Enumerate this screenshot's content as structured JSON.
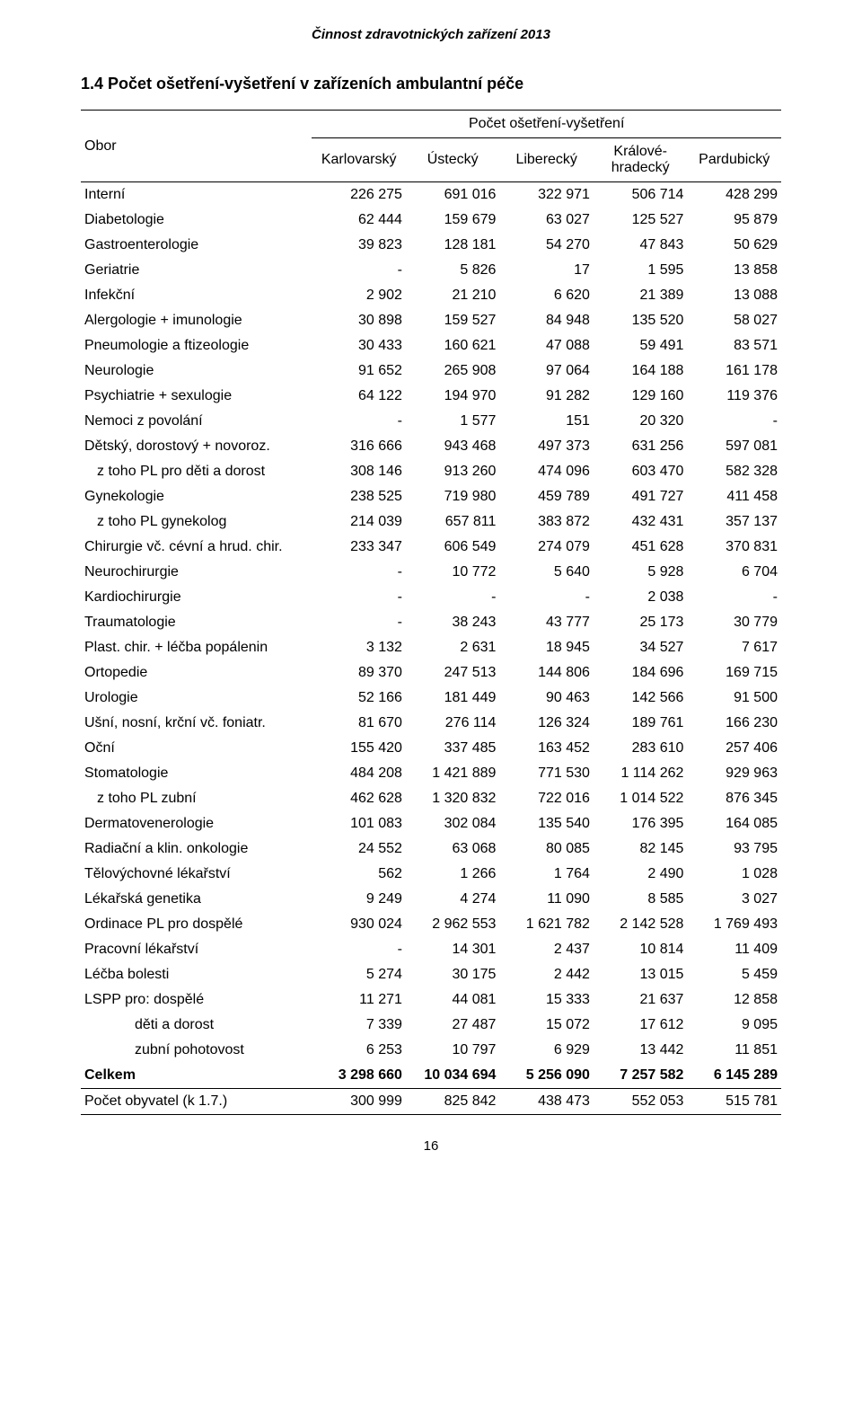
{
  "doc_header": "Činnost zdravotnických zařízení 2013",
  "title": "1.4 Počet ošetření-vyšetření v zařízeních ambulantní péče",
  "header": {
    "obor": "Obor",
    "super": "Počet ošetření-vyšetření",
    "cols": [
      "Karlovarský",
      "Ústecký",
      "Liberecký",
      "Králové-\nhradecký",
      "Pardubický"
    ]
  },
  "rows": [
    {
      "label": "Interní",
      "indent": 0,
      "v": [
        "226 275",
        "691 016",
        "322 971",
        "506 714",
        "428 299"
      ]
    },
    {
      "label": "Diabetologie",
      "indent": 0,
      "v": [
        "62 444",
        "159 679",
        "63 027",
        "125 527",
        "95 879"
      ]
    },
    {
      "label": "Gastroenterologie",
      "indent": 0,
      "v": [
        "39 823",
        "128 181",
        "54 270",
        "47 843",
        "50 629"
      ]
    },
    {
      "label": "Geriatrie",
      "indent": 0,
      "v": [
        "-",
        "5 826",
        "17",
        "1 595",
        "13 858"
      ]
    },
    {
      "label": "Infekční",
      "indent": 0,
      "v": [
        "2 902",
        "21 210",
        "6 620",
        "21 389",
        "13 088"
      ]
    },
    {
      "label": "Alergologie + imunologie",
      "indent": 0,
      "v": [
        "30 898",
        "159 527",
        "84 948",
        "135 520",
        "58 027"
      ]
    },
    {
      "label": "Pneumologie a ftizeologie",
      "indent": 0,
      "v": [
        "30 433",
        "160 621",
        "47 088",
        "59 491",
        "83 571"
      ]
    },
    {
      "label": "Neurologie",
      "indent": 0,
      "v": [
        "91 652",
        "265 908",
        "97 064",
        "164 188",
        "161 178"
      ]
    },
    {
      "label": "Psychiatrie + sexulogie",
      "indent": 0,
      "v": [
        "64 122",
        "194 970",
        "91 282",
        "129 160",
        "119 376"
      ]
    },
    {
      "label": "Nemoci z povolání",
      "indent": 0,
      "v": [
        "-",
        "1 577",
        "151",
        "20 320",
        "-"
      ]
    },
    {
      "label": "Dětský, dorostový + novoroz.",
      "indent": 0,
      "v": [
        "316 666",
        "943 468",
        "497 373",
        "631 256",
        "597 081"
      ]
    },
    {
      "label": "z toho PL pro děti a dorost",
      "indent": 1,
      "v": [
        "308 146",
        "913 260",
        "474 096",
        "603 470",
        "582 328"
      ]
    },
    {
      "label": "Gynekologie",
      "indent": 0,
      "v": [
        "238 525",
        "719 980",
        "459 789",
        "491 727",
        "411 458"
      ]
    },
    {
      "label": "z toho PL gynekolog",
      "indent": 1,
      "v": [
        "214 039",
        "657 811",
        "383 872",
        "432 431",
        "357 137"
      ]
    },
    {
      "label": "Chirurgie vč. cévní a hrud. chir.",
      "indent": 0,
      "v": [
        "233 347",
        "606 549",
        "274 079",
        "451 628",
        "370 831"
      ]
    },
    {
      "label": "Neurochirurgie",
      "indent": 0,
      "v": [
        "-",
        "10 772",
        "5 640",
        "5 928",
        "6 704"
      ]
    },
    {
      "label": "Kardiochirurgie",
      "indent": 0,
      "v": [
        "-",
        "-",
        "-",
        "2 038",
        "-"
      ]
    },
    {
      "label": "Traumatologie",
      "indent": 0,
      "v": [
        "-",
        "38 243",
        "43 777",
        "25 173",
        "30 779"
      ]
    },
    {
      "label": "Plast. chir. + léčba popálenin",
      "indent": 0,
      "v": [
        "3 132",
        "2 631",
        "18 945",
        "34 527",
        "7 617"
      ]
    },
    {
      "label": "Ortopedie",
      "indent": 0,
      "v": [
        "89 370",
        "247 513",
        "144 806",
        "184 696",
        "169 715"
      ]
    },
    {
      "label": "Urologie",
      "indent": 0,
      "v": [
        "52 166",
        "181 449",
        "90 463",
        "142 566",
        "91 500"
      ]
    },
    {
      "label": "Ušní, nosní, krční vč. foniatr.",
      "indent": 0,
      "v": [
        "81 670",
        "276 114",
        "126 324",
        "189 761",
        "166 230"
      ]
    },
    {
      "label": "Oční",
      "indent": 0,
      "v": [
        "155 420",
        "337 485",
        "163 452",
        "283 610",
        "257 406"
      ]
    },
    {
      "label": "Stomatologie",
      "indent": 0,
      "v": [
        "484 208",
        "1 421 889",
        "771 530",
        "1 114 262",
        "929 963"
      ]
    },
    {
      "label": "z toho PL zubní",
      "indent": 1,
      "v": [
        "462 628",
        "1 320 832",
        "722 016",
        "1 014 522",
        "876 345"
      ]
    },
    {
      "label": "Dermatovenerologie",
      "indent": 0,
      "v": [
        "101 083",
        "302 084",
        "135 540",
        "176 395",
        "164 085"
      ]
    },
    {
      "label": "Radiační a klin. onkologie",
      "indent": 0,
      "v": [
        "24 552",
        "63 068",
        "80 085",
        "82 145",
        "93 795"
      ]
    },
    {
      "label": "Tělovýchovné lékařství",
      "indent": 0,
      "v": [
        "562",
        "1 266",
        "1 764",
        "2 490",
        "1 028"
      ]
    },
    {
      "label": "Lékařská genetika",
      "indent": 0,
      "v": [
        "9 249",
        "4 274",
        "11 090",
        "8 585",
        "3 027"
      ]
    },
    {
      "label": "Ordinace PL pro dospělé",
      "indent": 0,
      "v": [
        "930 024",
        "2 962 553",
        "1 621 782",
        "2 142 528",
        "1 769 493"
      ]
    },
    {
      "label": "Pracovní lékařství",
      "indent": 0,
      "v": [
        "-",
        "14 301",
        "2 437",
        "10 814",
        "11 409"
      ]
    },
    {
      "label": "Léčba bolesti",
      "indent": 0,
      "v": [
        "5 274",
        "30 175",
        "2 442",
        "13 015",
        "5 459"
      ]
    },
    {
      "label": "LSPP pro: dospělé",
      "indent": 0,
      "v": [
        "11 271",
        "44 081",
        "15 333",
        "21 637",
        "12 858"
      ]
    },
    {
      "label": "děti a dorost",
      "indent": 2,
      "v": [
        "7 339",
        "27 487",
        "15 072",
        "17 612",
        "9 095"
      ]
    },
    {
      "label": "zubní pohotovost",
      "indent": 2,
      "v": [
        "6 253",
        "10 797",
        "6 929",
        "13 442",
        "11 851"
      ]
    },
    {
      "label": "Celkem",
      "indent": 0,
      "bold": true,
      "v": [
        "3 298 660",
        "10 034 694",
        "5 256 090",
        "7 257 582",
        "6 145 289"
      ]
    },
    {
      "label": "Počet obyvatel (k 1.7.)",
      "indent": 0,
      "sepAbove": true,
      "sepBelow": true,
      "v": [
        "300 999",
        "825 842",
        "438 473",
        "552 053",
        "515 781"
      ]
    }
  ],
  "page_number": "16",
  "colWidths": [
    "33%",
    "13.4%",
    "13.4%",
    "13.4%",
    "13.4%",
    "13.4%"
  ]
}
